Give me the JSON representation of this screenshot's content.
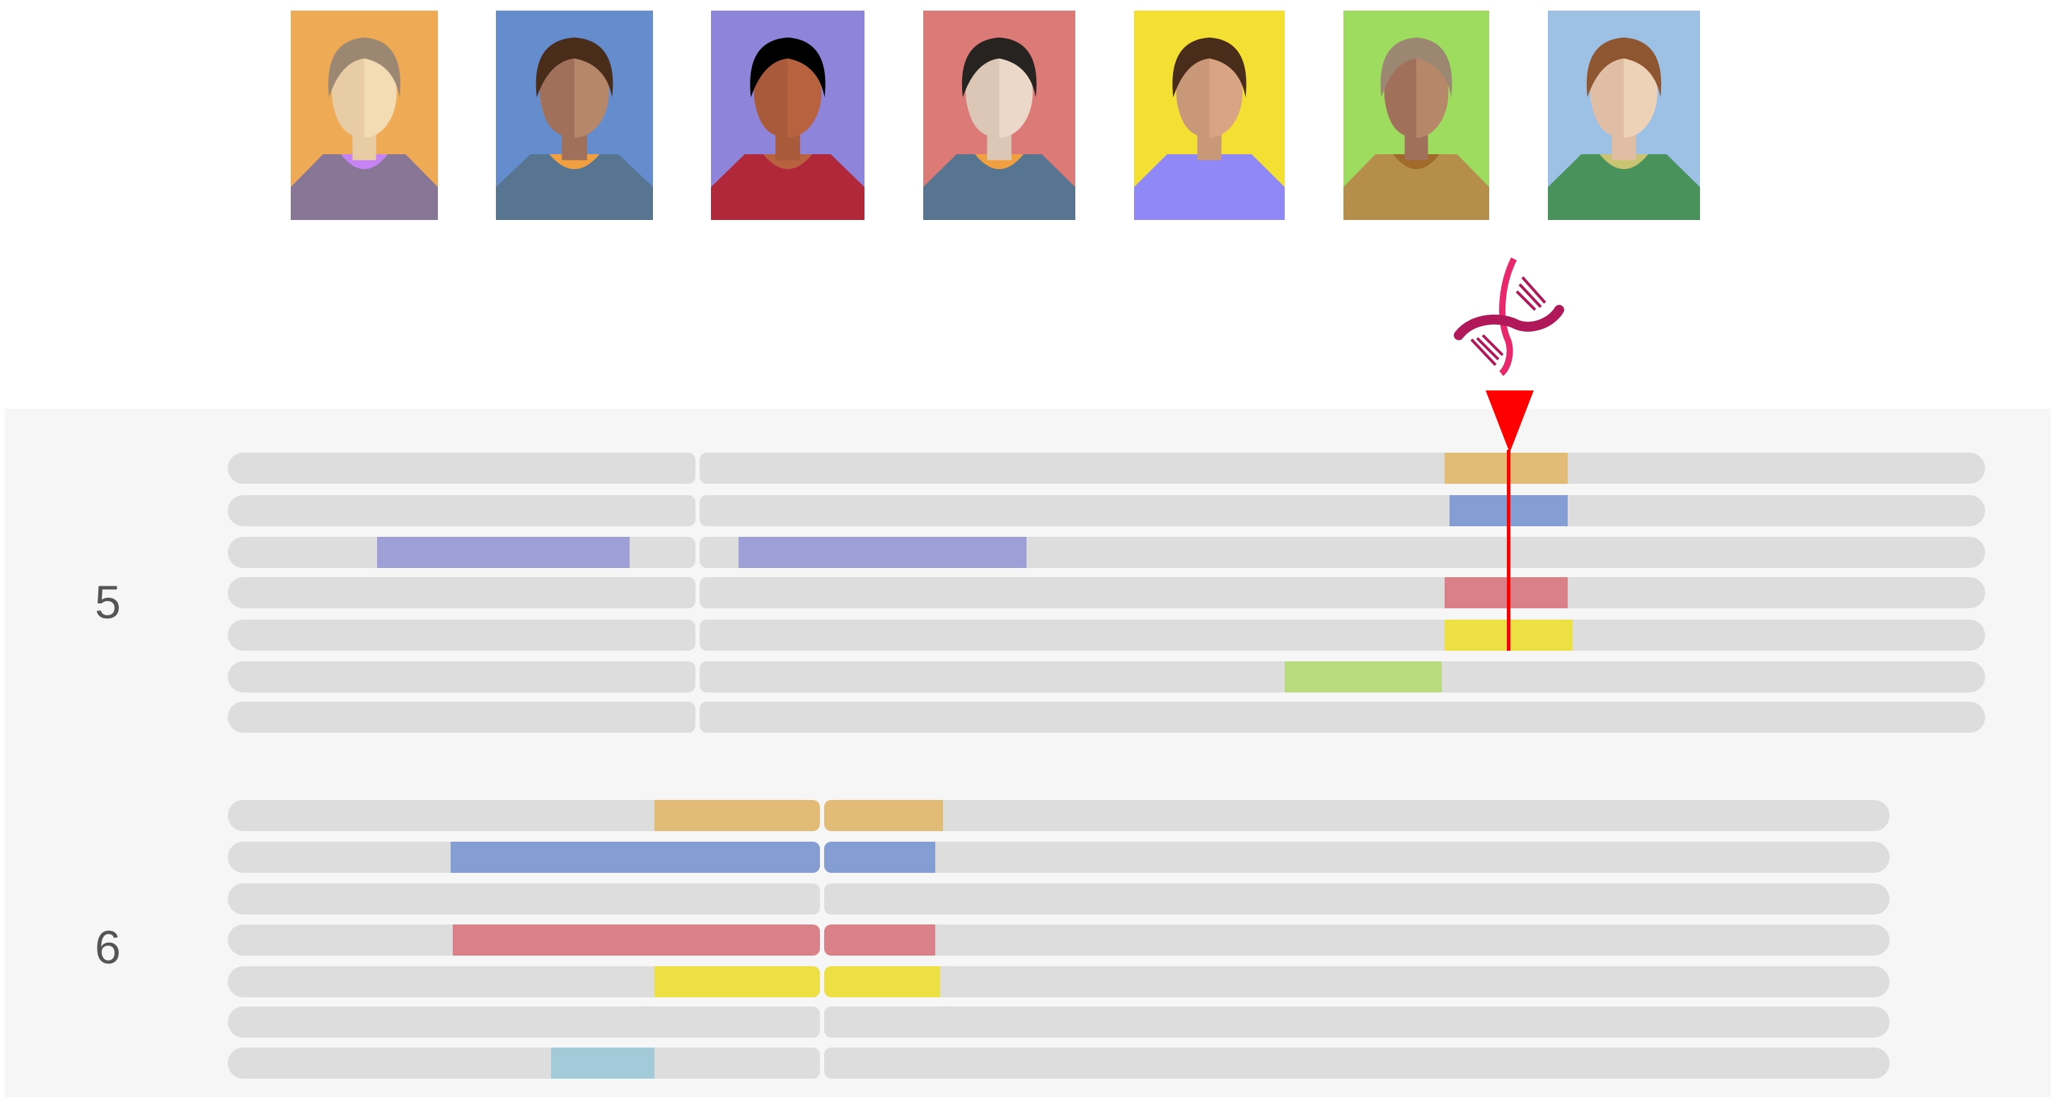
{
  "people": [
    {
      "id": "p1",
      "bg": "#eeaa55",
      "hair": "#9c8872",
      "skin": "#f3dbb3",
      "skin_shade": "#e8cca4",
      "shirt": "#877695",
      "collar": "#c683f4",
      "icon": "grandmother-avatar-icon"
    },
    {
      "id": "p2",
      "bg": "#658ccc",
      "hair": "#4a2c1a",
      "skin": "#b7876a",
      "skin_shade": "#a0705a",
      "shirt": "#577590",
      "collar": "#f0a040",
      "icon": "man-avatar-icon"
    },
    {
      "id": "p3",
      "bg": "#8e85db",
      "hair": "#000000",
      "skin": "#b86240",
      "skin_shade": "#a85a3a",
      "shirt": "#b0283a",
      "collar": "#b86240",
      "icon": "woman-glasses-avatar-icon"
    },
    {
      "id": "p4",
      "bg": "#dc7a78",
      "hair": "#262320",
      "skin": "#ecd8c8",
      "skin_shade": "#dcc6b6",
      "shirt": "#577590",
      "collar": "#f0a040",
      "icon": "young-man-avatar-icon"
    },
    {
      "id": "p5",
      "bg": "#f4e033",
      "hair": "#4a2c1a",
      "skin": "#d8a484",
      "skin_shade": "#c89878",
      "shirt": "#9188f8",
      "collar": "#9188f8",
      "icon": "young-woman-avatar-icon"
    },
    {
      "id": "p6",
      "bg": "#9ddc5e",
      "hair": "#9c8872",
      "skin": "#b7876a",
      "skin_shade": "#a0705a",
      "shirt": "#b58e4c",
      "collar": "#a06a2a",
      "icon": "grandfather-avatar-icon"
    },
    {
      "id": "p7",
      "bg": "#9dc1e4",
      "hair": "#8f5731",
      "skin": "#eed2b8",
      "skin_shade": "#e0bea6",
      "shirt": "#4a925c",
      "collar": "#c8c472",
      "icon": "child-avatar-icon"
    }
  ],
  "dna_icon": {
    "name": "dna-icon",
    "color": "#e8286a",
    "dark": "#b0185a"
  },
  "marker": {
    "color": "#ff0000"
  },
  "chromosomes": [
    {
      "label": "5",
      "rows": [
        {
          "segments": [
            {
              "start": 2042,
              "end": 2216,
              "color": "#e2bb77"
            }
          ]
        },
        {
          "segments": [
            {
              "start": 2049,
              "end": 2216,
              "color": "#849dd3"
            }
          ]
        },
        {
          "segments": [
            {
              "start": 533,
              "end": 890,
              "color": "#9f9fd8"
            },
            {
              "start": 1044,
              "end": 1451,
              "color": "#9f9fd8"
            }
          ]
        },
        {
          "segments": [
            {
              "start": 2042,
              "end": 2216,
              "color": "#d98088"
            }
          ]
        },
        {
          "segments": [
            {
              "start": 2042,
              "end": 2223,
              "color": "#ede045"
            }
          ]
        },
        {
          "segments": [
            {
              "start": 1816,
              "end": 2038,
              "color": "#badb7d"
            }
          ]
        },
        {
          "segments": []
        }
      ]
    },
    {
      "label": "6",
      "rows": [
        {
          "segments": [
            {
              "start": 925,
              "end": 1333,
              "color": "#e2bb77"
            }
          ]
        },
        {
          "segments": [
            {
              "start": 637,
              "end": 1322,
              "color": "#849dd3"
            }
          ]
        },
        {
          "segments": []
        },
        {
          "segments": [
            {
              "start": 640,
              "end": 1322,
              "color": "#d98088"
            }
          ]
        },
        {
          "segments": [
            {
              "start": 925,
              "end": 1329,
              "color": "#ede045"
            }
          ]
        },
        {
          "segments": []
        },
        {
          "segments": [
            {
              "start": 779,
              "end": 925,
              "color": "#a2cad8"
            }
          ]
        }
      ]
    }
  ],
  "colors": {
    "panel_bg": "#f6f6f6",
    "chromosome_base": "#dddddd",
    "label_text": "#555555"
  }
}
